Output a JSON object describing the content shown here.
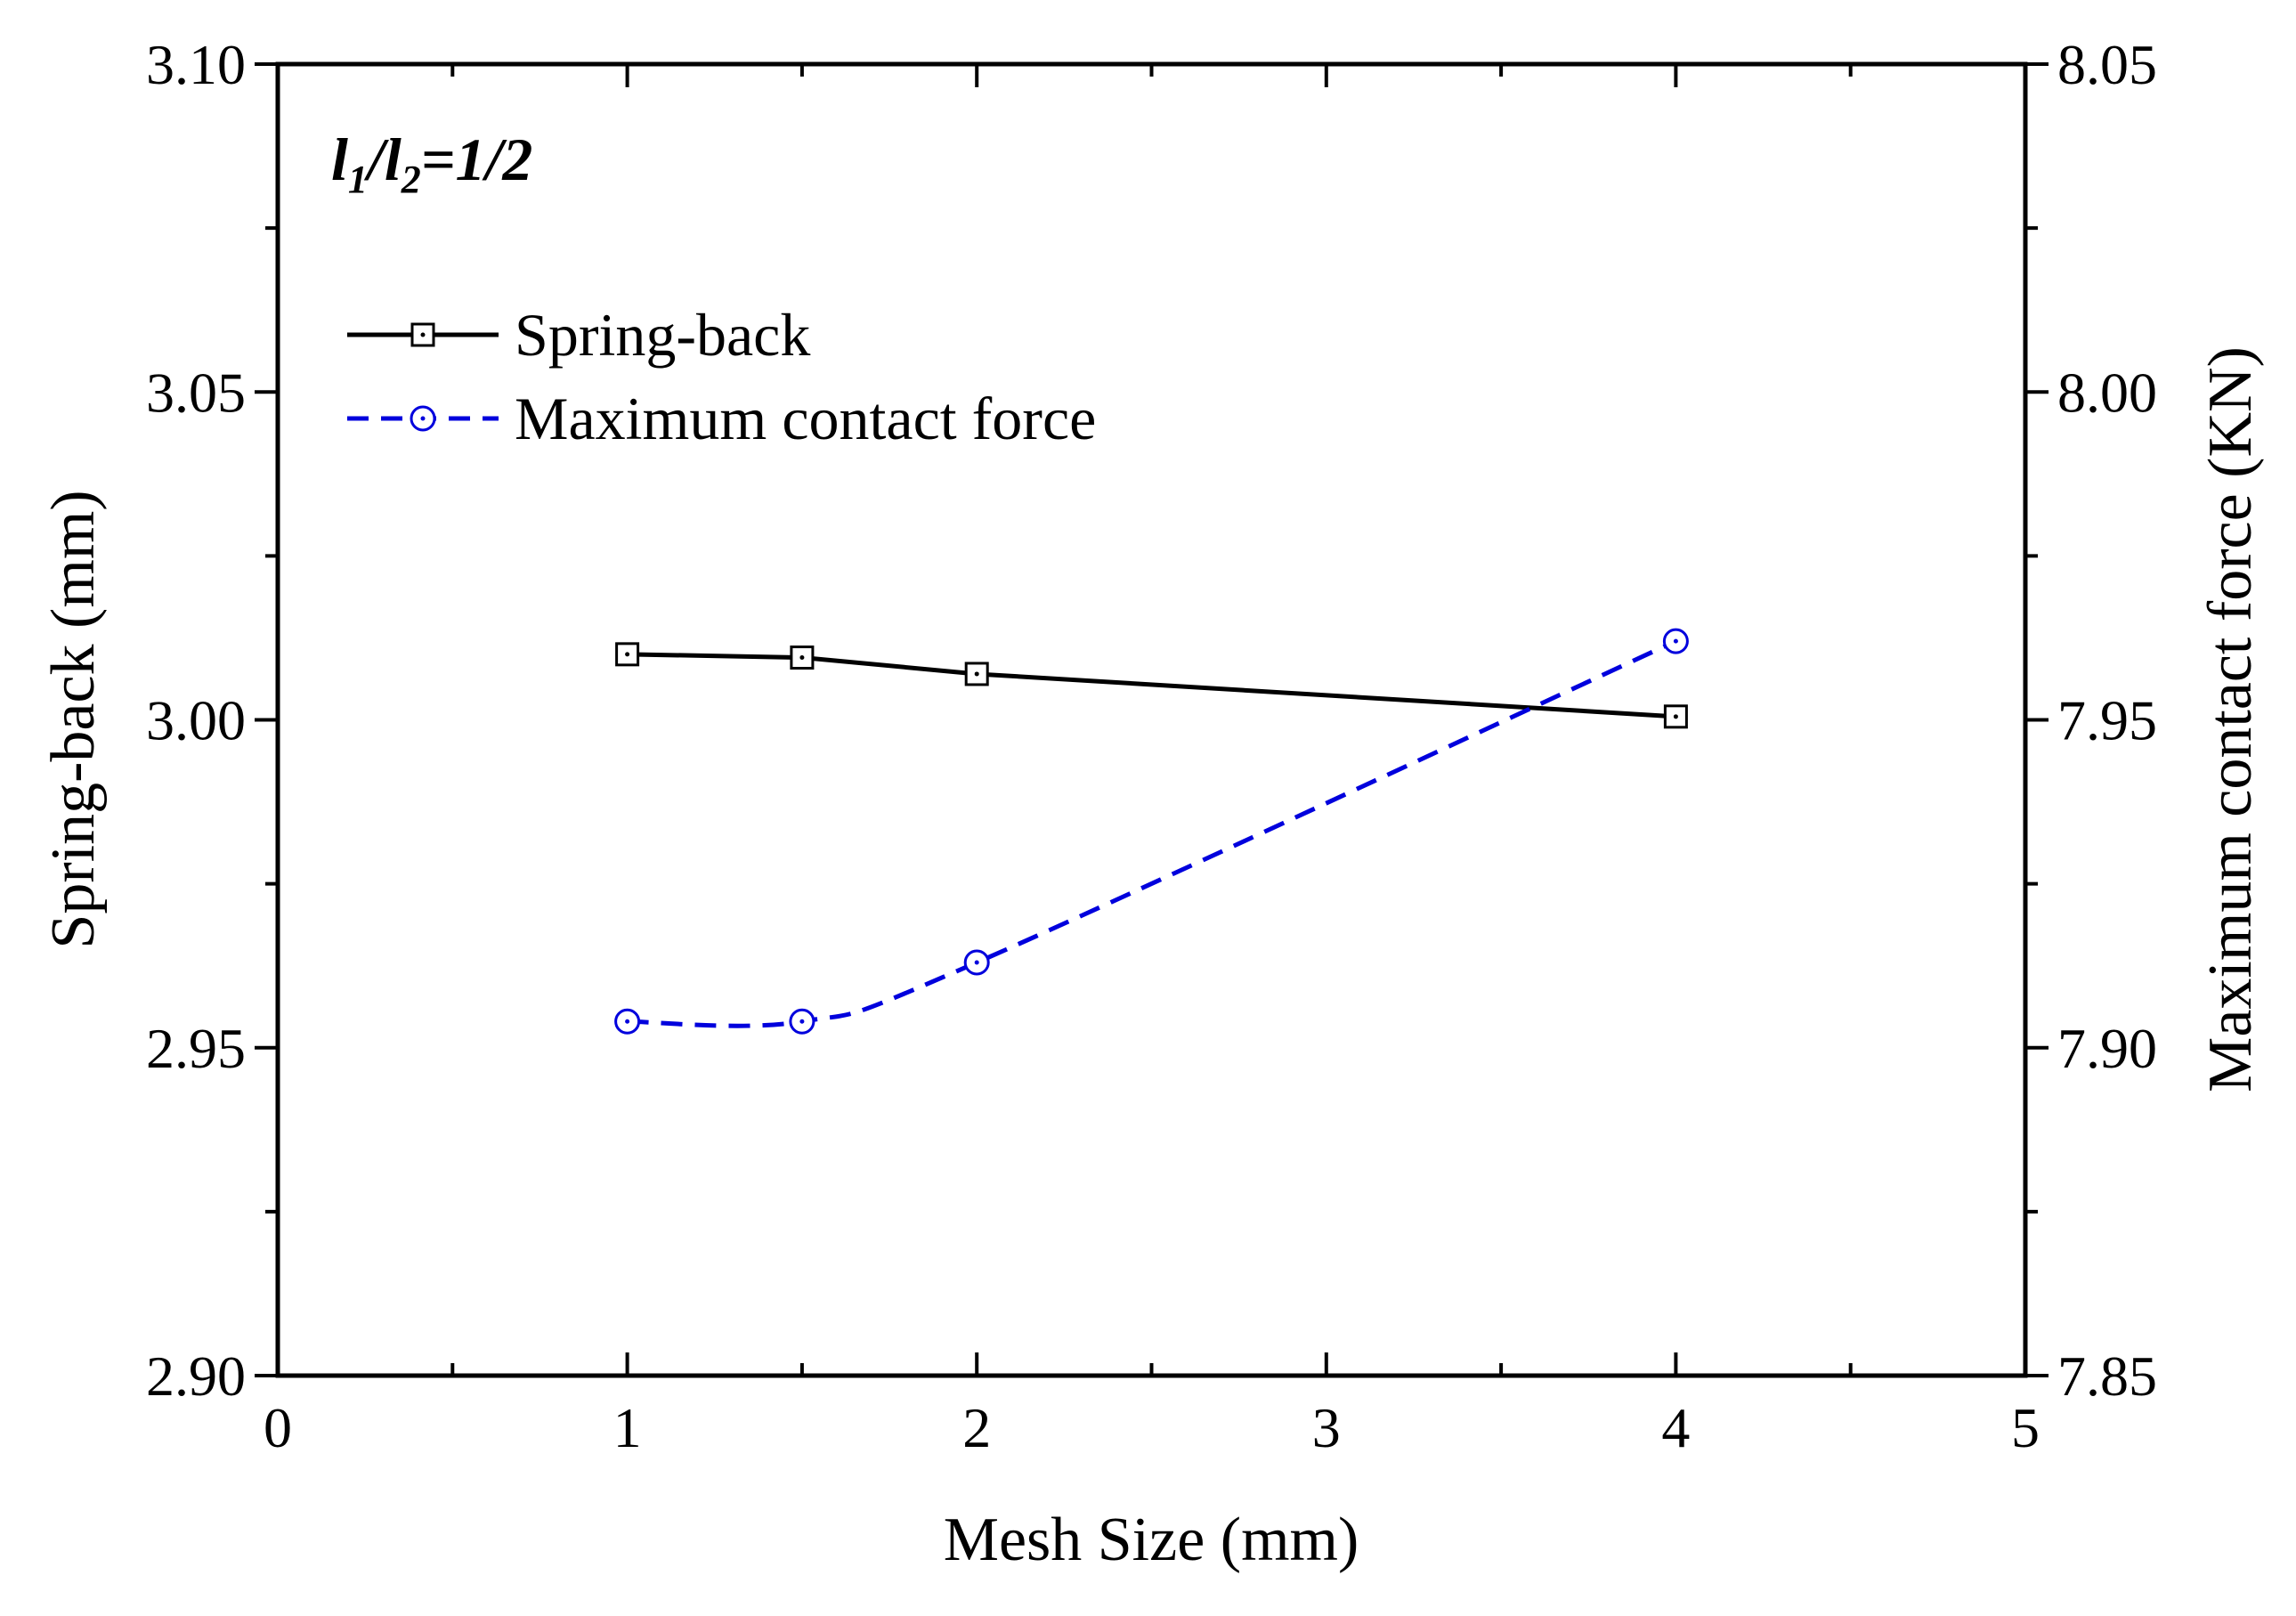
{
  "chart_data": {
    "type": "line",
    "annotation": {
      "l1": "l",
      "sub1": "1",
      "slash": "/",
      "l2": "l",
      "sub2": "2",
      "ratio": "=1/2"
    },
    "xlabel": "Mesh Size (mm)",
    "ylabel_left": "Spring-back (mm)",
    "ylabel_right": "Maximum contact force (KN)",
    "xlim": [
      0,
      5
    ],
    "ylim_left": [
      2.9,
      3.1
    ],
    "ylim_right": [
      7.85,
      8.05
    ],
    "x_ticks": [
      "0",
      "1",
      "2",
      "3",
      "4",
      "5"
    ],
    "y_left_ticks": [
      "2.90",
      "2.95",
      "3.00",
      "3.05",
      "3.10"
    ],
    "y_right_ticks": [
      "7.85",
      "7.90",
      "7.95",
      "8.00",
      "8.05"
    ],
    "legend_position": "upper-left",
    "series": [
      {
        "name": "Spring-back",
        "axis": "left",
        "color": "#000000",
        "line_style": "solid",
        "marker": "square",
        "x": [
          1,
          1.5,
          2,
          4
        ],
        "values": [
          3.01,
          3.0095,
          3.007,
          3.0005
        ]
      },
      {
        "name": "Maximum contact force",
        "axis": "right",
        "color": "#0000dd",
        "line_style": "dashed",
        "marker": "circle-dot",
        "x": [
          1,
          1.5,
          2,
          4
        ],
        "values": [
          7.904,
          7.904,
          7.913,
          7.962
        ]
      }
    ]
  }
}
